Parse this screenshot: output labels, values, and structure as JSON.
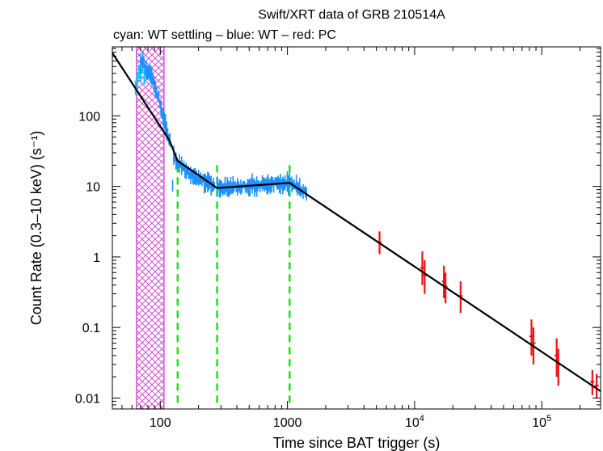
{
  "chart_data": {
    "type": "scatter",
    "title": "Swift/XRT data of GRB 210514A",
    "subtitle": "cyan: WT settling – blue: WT – red: PC",
    "xlabel": "Time since BAT trigger (s)",
    "ylabel": "Count Rate (0.3–10 keV) (s⁻¹)",
    "xscale": "log",
    "yscale": "log",
    "xlim": [
      42,
      290000
    ],
    "ylim": [
      0.007,
      950
    ],
    "x_ticks": [
      {
        "value": 100,
        "label": "100",
        "sup": ""
      },
      {
        "value": 1000,
        "label": "1000",
        "sup": ""
      },
      {
        "value": 10000,
        "label": "10",
        "sup": "4"
      },
      {
        "value": 100000,
        "label": "10",
        "sup": "5"
      }
    ],
    "y_ticks": [
      {
        "value": 0.01,
        "label": "0.01"
      },
      {
        "value": 0.1,
        "label": "0.1"
      },
      {
        "value": 1,
        "label": "1"
      },
      {
        "value": 10,
        "label": "10"
      },
      {
        "value": 100,
        "label": "100"
      }
    ],
    "shaded_interval": {
      "x_start": 65,
      "x_end": 107,
      "color": "#cc33cc",
      "pattern": "crosshatch"
    },
    "vertical_markers": {
      "values": [
        137,
        280,
        1040
      ],
      "color": "#22dd22",
      "style": "dashed"
    },
    "model_fit": {
      "name": "broken power-law fit",
      "color": "#000000",
      "x": [
        42,
        118,
        137,
        280,
        1040,
        290000
      ],
      "y": [
        780,
        45,
        23,
        9.5,
        11.2,
        0.0125
      ]
    },
    "series": [
      {
        "name": "WT settling",
        "color": "#00ccff",
        "x": [
          64,
          66,
          68,
          70,
          72,
          75
        ],
        "y": [
          250,
          320,
          420,
          380,
          500,
          350
        ]
      },
      {
        "name": "WT",
        "color": "#1e90ff",
        "segments": [
          {
            "x": [
              70,
              73,
              76,
              80,
              84,
              88,
              92,
              96,
              100,
              104,
              108,
              112,
              116,
              120
            ],
            "y": [
              560,
              600,
              480,
              420,
              380,
              300,
              240,
              190,
              150,
              110,
              85,
              65,
              50,
              42
            ]
          },
          {
            "x": [
              125,
              135,
              145,
              160,
              175,
              190,
              210,
              230,
              250,
              270
            ],
            "y": [
              30,
              22,
              20,
              17,
              15,
              13.5,
              12.5,
              11.5,
              10.5,
              9.8
            ]
          },
          {
            "x": [
              280,
              320,
              360,
              400,
              450,
              500,
              560,
              620,
              700,
              780,
              860,
              950,
              1040,
              1150,
              1280,
              1420
            ],
            "y": [
              9.5,
              9.6,
              9.8,
              9.9,
              10.1,
              10.2,
              10.3,
              10.4,
              10.6,
              10.8,
              11.0,
              11.1,
              11.2,
              10.5,
              9.0,
              7.5
            ]
          }
        ]
      },
      {
        "name": "PC",
        "color": "#ee1111",
        "x": [
          5300,
          11500,
          12000,
          17000,
          17500,
          23000,
          83000,
          86000,
          131000,
          135000,
          250000,
          270000
        ],
        "y": [
          1.6,
          0.7,
          0.55,
          0.45,
          0.38,
          0.28,
          0.075,
          0.06,
          0.04,
          0.03,
          0.017,
          0.015
        ],
        "yerr_low": [
          1.1,
          0.4,
          0.3,
          0.26,
          0.22,
          0.16,
          0.04,
          0.03,
          0.02,
          0.015,
          0.011,
          0.01
        ],
        "yerr_high": [
          2.3,
          1.2,
          0.9,
          0.75,
          0.6,
          0.45,
          0.13,
          0.1,
          0.07,
          0.05,
          0.025,
          0.022
        ]
      }
    ]
  }
}
